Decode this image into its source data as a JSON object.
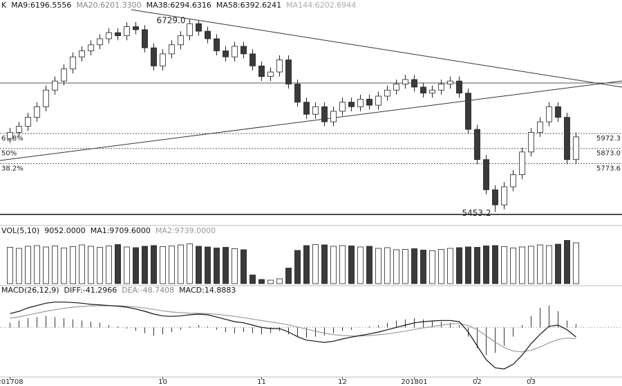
{
  "chart_data": [
    {
      "type": "candlestick",
      "headers": [
        "K",
        "MA9:6196.5556",
        "MA20:6201.3300",
        "MA38:6294.6316",
        "MA58:6392.6241",
        "MA144:6202.6944"
      ],
      "header_colors": [
        "#111111",
        "#111111",
        "#888888",
        "#111111",
        "#111111",
        "#aaaaaa"
      ],
      "open": [
        5940,
        5980,
        6020,
        6080,
        6150,
        6260,
        6320,
        6400,
        6480,
        6520,
        6560,
        6600,
        6640,
        6620,
        6680,
        6660,
        6540,
        6420,
        6500,
        6560,
        6620,
        6700,
        6650,
        6600,
        6520,
        6480,
        6550,
        6500,
        6420,
        6350,
        6380,
        6460,
        6300,
        6180,
        6100,
        6150,
        6050,
        6120,
        6180,
        6150,
        6200,
        6160,
        6220,
        6260,
        6300,
        6330,
        6280,
        6240,
        6260,
        6300,
        6320,
        6240,
        6000,
        5800,
        5600,
        5500,
        5620,
        5700,
        5850,
        5980,
        6050,
        6150,
        6080,
        5800
      ],
      "close": [
        5980,
        6020,
        6080,
        6150,
        6260,
        6320,
        6400,
        6480,
        6520,
        6560,
        6600,
        6640,
        6620,
        6680,
        6660,
        6540,
        6420,
        6500,
        6560,
        6620,
        6700,
        6650,
        6600,
        6520,
        6480,
        6550,
        6500,
        6420,
        6350,
        6380,
        6460,
        6300,
        6180,
        6100,
        6150,
        6050,
        6120,
        6180,
        6150,
        6200,
        6160,
        6220,
        6260,
        6300,
        6330,
        6280,
        6240,
        6260,
        6300,
        6320,
        6240,
        6000,
        5800,
        5600,
        5500,
        5620,
        5700,
        5850,
        5980,
        6050,
        6150,
        6080,
        5800,
        5950
      ],
      "high": [
        6010,
        6050,
        6110,
        6180,
        6290,
        6350,
        6430,
        6510,
        6550,
        6590,
        6630,
        6670,
        6670,
        6710,
        6710,
        6690,
        6570,
        6530,
        6590,
        6650,
        6729,
        6720,
        6680,
        6630,
        6550,
        6580,
        6580,
        6530,
        6450,
        6410,
        6490,
        6490,
        6330,
        6210,
        6180,
        6180,
        6150,
        6210,
        6210,
        6230,
        6230,
        6250,
        6290,
        6330,
        6360,
        6360,
        6310,
        6290,
        6330,
        6350,
        6350,
        6270,
        6030,
        5830,
        5630,
        5650,
        5730,
        5880,
        6010,
        6080,
        6180,
        6180,
        6110,
        5980
      ],
      "low": [
        5910,
        5950,
        5990,
        6050,
        6120,
        6230,
        6290,
        6370,
        6450,
        6490,
        6530,
        6570,
        6590,
        6590,
        6630,
        6510,
        6390,
        6390,
        6470,
        6530,
        6590,
        6620,
        6570,
        6490,
        6450,
        6450,
        6470,
        6390,
        6320,
        6320,
        6350,
        6270,
        6150,
        6070,
        6070,
        6020,
        6020,
        6090,
        6120,
        6120,
        6130,
        6130,
        6190,
        6230,
        6270,
        6250,
        6210,
        6210,
        6230,
        6270,
        6210,
        5970,
        5770,
        5570,
        5453.2,
        5470,
        5590,
        5670,
        5820,
        5950,
        6020,
        6050,
        5770,
        5770
      ],
      "high_label": "6729.0",
      "levels": {
        "names": [
          "61.8%",
          "50%",
          "38.2%"
        ],
        "values": [
          5972.3,
          5873,
          5773.6
        ],
        "value_labels": [
          "5972.3",
          "5873.0",
          "5773.6"
        ]
      },
      "up_color": "#ffffff",
      "down_color": "#3a3a3a",
      "ylim": [
        5400,
        6820
      ]
    },
    {
      "type": "bar",
      "headers": [
        "VOL(5,10)",
        "9052.0000",
        "MA1:9709.6000",
        "MA2:9739.0000"
      ],
      "header_colors": [
        "#111111",
        "#111111",
        "#111111",
        "#999999"
      ],
      "values": [
        10500,
        10200,
        10800,
        11000,
        10600,
        10900,
        10300,
        10700,
        11200,
        10800,
        10500,
        10900,
        11300,
        10600,
        10400,
        10800,
        11000,
        10700,
        10900,
        11200,
        11500,
        10800,
        10600,
        10300,
        10500,
        10100,
        9800,
        2500,
        1200,
        1000,
        1400,
        4500,
        9600,
        11000,
        11300,
        11200,
        10800,
        11000,
        10900,
        10600,
        10800,
        10200,
        10400,
        9800,
        9900,
        10100,
        9700,
        9500,
        9900,
        10200,
        10400,
        10600,
        10500,
        10900,
        11000,
        10700,
        10300,
        10600,
        10800,
        11200,
        11000,
        11400,
        12500,
        11800
      ],
      "ylim": [
        0,
        14000
      ]
    },
    {
      "type": "macd",
      "headers": [
        "MACD(26,12,9)",
        "DIFF:-41.2966",
        "DEA:-48.7408",
        "MACD:14.8883"
      ],
      "header_colors": [
        "#111111",
        "#111111",
        "#888888",
        "#111111"
      ],
      "categories": [
        "201708",
        null,
        null,
        null,
        null,
        null,
        null,
        null,
        null,
        null,
        null,
        null,
        null,
        null,
        null,
        null,
        null,
        "10",
        null,
        null,
        null,
        null,
        null,
        null,
        null,
        null,
        null,
        null,
        "11",
        null,
        null,
        null,
        null,
        null,
        null,
        null,
        null,
        "12",
        null,
        null,
        null,
        null,
        null,
        null,
        null,
        "201801",
        null,
        null,
        null,
        null,
        null,
        null,
        "02",
        null,
        null,
        null,
        null,
        null,
        "03",
        null,
        null,
        null,
        null,
        null
      ],
      "macd": [
        20,
        30,
        40,
        45,
        50,
        45,
        40,
        35,
        30,
        25,
        20,
        10,
        5,
        -5,
        -15,
        -25,
        -35,
        -30,
        -20,
        -10,
        5,
        10,
        5,
        -10,
        -20,
        -25,
        -20,
        -25,
        -30,
        -25,
        -15,
        -30,
        -40,
        -45,
        -40,
        -35,
        -25,
        -15,
        -10,
        0,
        5,
        10,
        20,
        30,
        35,
        40,
        35,
        30,
        25,
        20,
        10,
        -40,
        -90,
        -120,
        -110,
        -80,
        -40,
        10,
        50,
        85,
        95,
        70,
        30,
        14.8883
      ],
      "diff": [
        60,
        70,
        85,
        95,
        105,
        110,
        110,
        108,
        105,
        100,
        98,
        95,
        92,
        88,
        80,
        70,
        58,
        50,
        48,
        50,
        55,
        58,
        55,
        45,
        35,
        25,
        20,
        10,
        0,
        -5,
        -5,
        -20,
        -40,
        -55,
        -60,
        -65,
        -60,
        -50,
        -42,
        -35,
        -28,
        -20,
        -10,
        0,
        10,
        20,
        25,
        28,
        30,
        30,
        25,
        -20,
        -80,
        -140,
        -175,
        -180,
        -160,
        -120,
        -70,
        -30,
        5,
        10,
        -10,
        -41.2966
      ],
      "dea": [
        40,
        46,
        54,
        62,
        70,
        77,
        83,
        88,
        91,
        93,
        94,
        94,
        94,
        92,
        89,
        84,
        78,
        72,
        67,
        64,
        62,
        61,
        60,
        57,
        53,
        48,
        42,
        36,
        30,
        24,
        18,
        11,
        2,
        -7,
        -16,
        -25,
        -31,
        -35,
        -37,
        -37,
        -35,
        -32,
        -28,
        -22,
        -16,
        -9,
        -2,
        4,
        10,
        15,
        17,
        8,
        -10,
        -36,
        -64,
        -87,
        -102,
        -106,
        -99,
        -85,
        -67,
        -52,
        -46,
        -48.7408
      ],
      "diff_color": "#111111",
      "dea_color": "#999999",
      "ylim": [
        -200,
        130
      ]
    }
  ]
}
